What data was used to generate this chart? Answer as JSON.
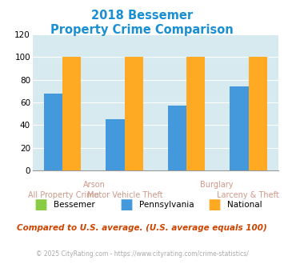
{
  "title_line1": "2018 Bessemer",
  "title_line2": "Property Crime Comparison",
  "title_color": "#1a8fd1",
  "groups": [
    0,
    1,
    2,
    3
  ],
  "bessemer": [
    0,
    0,
    0,
    0
  ],
  "pennsylvania": [
    68,
    45,
    57,
    74
  ],
  "national": [
    100,
    100,
    100,
    100
  ],
  "bessemer_color": "#88cc44",
  "pennsylvania_color": "#4499dd",
  "national_color": "#ffaa22",
  "ylim": [
    0,
    120
  ],
  "yticks": [
    0,
    20,
    40,
    60,
    80,
    100,
    120
  ],
  "plot_bg": "#d6eaf0",
  "grid_color": "white",
  "bar_width": 0.3,
  "footer_text": "Compared to U.S. average. (U.S. average equals 100)",
  "footer_color": "#cc4400",
  "copyright_text": "© 2025 CityRating.com - https://www.cityrating.com/crime-statistics/",
  "copyright_color": "#aaaaaa",
  "legend_labels": [
    "Bessemer",
    "Pennsylvania",
    "National"
  ],
  "xtick_top": [
    "",
    "Arson",
    "",
    "Burglary",
    ""
  ],
  "xtick_bottom": [
    "All Property Crime",
    "Motor Vehicle Theft",
    "Larceny & Theft"
  ]
}
